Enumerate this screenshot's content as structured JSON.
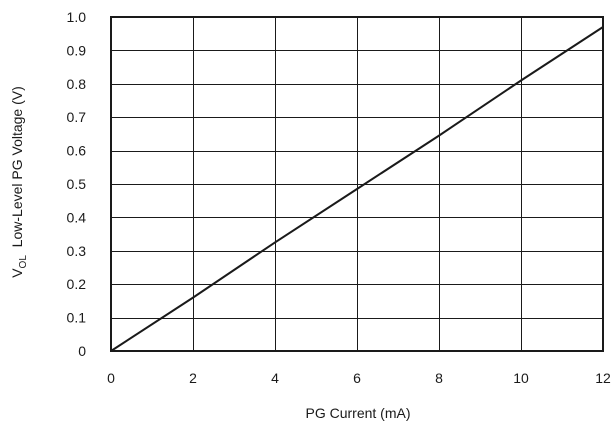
{
  "chart_data": {
    "type": "line",
    "title": "",
    "xlabel": "PG Current (mA)",
    "ylabel": {
      "prefix": "V",
      "subscript": "OL",
      "suffix": "  Low-Level PG Voltage (V)"
    },
    "xlim": [
      0,
      12
    ],
    "ylim": [
      0,
      1.0
    ],
    "x_ticks": [
      0,
      2,
      4,
      6,
      8,
      10,
      12
    ],
    "y_ticks": [
      0,
      0.1,
      0.2,
      0.3,
      0.4,
      0.5,
      0.6,
      0.7,
      0.8,
      0.9,
      1.0
    ],
    "x_tick_labels": [
      "0",
      "2",
      "4",
      "6",
      "8",
      "10",
      "12"
    ],
    "y_tick_labels": [
      "0",
      "0.1",
      "0.2",
      "0.3",
      "0.4",
      "0.5",
      "0.6",
      "0.7",
      "0.8",
      "0.9",
      "1.0"
    ],
    "grid": true,
    "series": [
      {
        "x": [
          0,
          2,
          4,
          6,
          8,
          10,
          12
        ],
        "y": [
          0,
          0.16,
          0.325,
          0.485,
          0.645,
          0.81,
          0.97
        ],
        "color": "#1a1a1a"
      }
    ]
  }
}
